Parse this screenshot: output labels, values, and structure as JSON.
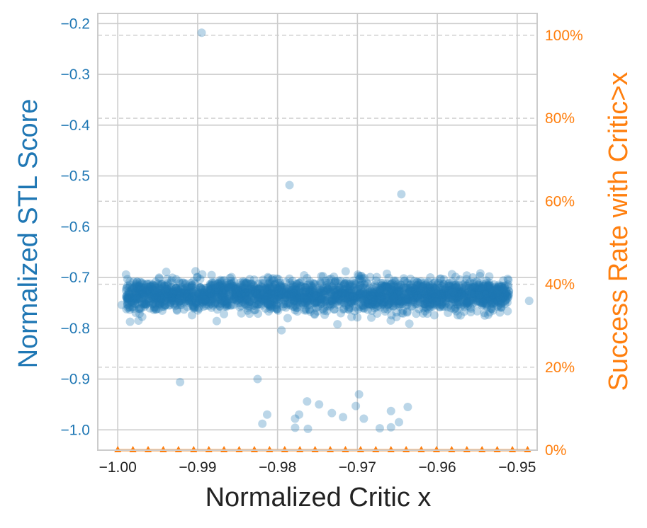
{
  "chart_data": {
    "type": "scatter",
    "xlabel": "Normalized Critic x",
    "ylabel": "Normalized STL Score",
    "y2label": "Success Rate with Critic>x",
    "xlim": [
      -1.0025,
      -0.9475
    ],
    "ylim": [
      -1.04,
      -0.18
    ],
    "y2lim": [
      0,
      1.0526
    ],
    "x_ticks": [
      -1.0,
      -0.99,
      -0.98,
      -0.97,
      -0.96,
      -0.95
    ],
    "x_tick_labels": [
      "−1.00",
      "−0.99",
      "−0.98",
      "−0.97",
      "−0.96",
      "−0.95"
    ],
    "y_ticks": [
      -0.2,
      -0.3,
      -0.4,
      -0.5,
      -0.6,
      -0.7,
      -0.8,
      -0.9,
      -1.0
    ],
    "y_tick_labels": [
      "−0.2",
      "−0.3",
      "−0.4",
      "−0.5",
      "−0.6",
      "−0.7",
      "−0.8",
      "−0.9",
      "−1.0"
    ],
    "y2_ticks": [
      0,
      0.2,
      0.4,
      0.6,
      0.8,
      1.0
    ],
    "y2_tick_labels": [
      "0%",
      "20%",
      "40%",
      "60%",
      "80%",
      "100%"
    ],
    "grid": true,
    "cluster": {
      "x_range": [
        -0.999,
        -0.951
      ],
      "y_center": -0.735,
      "y_spread": 0.015,
      "count": 2500,
      "note_visible": ""
    },
    "scatter_points": [
      {
        "x": -0.9895,
        "y": -0.218
      },
      {
        "x": -0.9785,
        "y": -0.518
      },
      {
        "x": -0.9645,
        "y": -0.536
      },
      {
        "x": -0.9795,
        "y": -0.804
      },
      {
        "x": -0.9725,
        "y": -0.792
      },
      {
        "x": -0.9635,
        "y": -0.791
      },
      {
        "x": -0.9995,
        "y": -0.754
      },
      {
        "x": -0.9985,
        "y": -0.708
      },
      {
        "x": -0.9515,
        "y": -0.746
      },
      {
        "x": -0.9485,
        "y": -0.746
      },
      {
        "x": -0.9535,
        "y": -0.698
      },
      {
        "x": -0.9555,
        "y": -0.713
      },
      {
        "x": -0.9922,
        "y": -0.906
      },
      {
        "x": -0.9825,
        "y": -0.9
      },
      {
        "x": -0.9813,
        "y": -0.97
      },
      {
        "x": -0.9819,
        "y": -0.988
      },
      {
        "x": -0.9773,
        "y": -0.97
      },
      {
        "x": -0.9778,
        "y": -0.978
      },
      {
        "x": -0.9778,
        "y": -0.996
      },
      {
        "x": -0.9763,
        "y": -0.944
      },
      {
        "x": -0.9762,
        "y": -0.998
      },
      {
        "x": -0.9748,
        "y": -0.95
      },
      {
        "x": -0.9732,
        "y": -0.967
      },
      {
        "x": -0.9718,
        "y": -0.975
      },
      {
        "x": -0.9698,
        "y": -0.93
      },
      {
        "x": -0.9702,
        "y": -0.953
      },
      {
        "x": -0.9692,
        "y": -0.978
      },
      {
        "x": -0.9672,
        "y": -0.997
      },
      {
        "x": -0.9658,
        "y": -0.963
      },
      {
        "x": -0.9658,
        "y": -0.995
      },
      {
        "x": -0.9637,
        "y": -0.955
      },
      {
        "x": -0.9648,
        "y": -0.985
      }
    ],
    "series": [
      {
        "name": "",
        "axis": "right",
        "type": "line",
        "color": "#ff7f0e",
        "marker": "triangle",
        "x": [
          -1.0,
          -0.9981,
          -0.9962,
          -0.9943,
          -0.9924,
          -0.9905,
          -0.9886,
          -0.9867,
          -0.9848,
          -0.9829,
          -0.981,
          -0.9791,
          -0.9772,
          -0.9753,
          -0.9734,
          -0.9715,
          -0.9696,
          -0.9677,
          -0.9658,
          -0.9639,
          -0.962,
          -0.9601,
          -0.9582,
          -0.9563,
          -0.9544,
          -0.9525,
          -0.9506,
          -0.9487
        ],
        "y": [
          0,
          0,
          0,
          0,
          0,
          0,
          0,
          0,
          0,
          0,
          0,
          0,
          0,
          0,
          0,
          0,
          0,
          0,
          0,
          0,
          0,
          0,
          0,
          0,
          0,
          0,
          0,
          0
        ]
      }
    ],
    "right_axis_gridlines": [
      0.2,
      0.4,
      0.6,
      0.8,
      1.0
    ]
  },
  "colors": {
    "scatter": "#1f77b4",
    "left_axis": "#1f77b4",
    "right_axis": "#ff7f0e",
    "x_axis_text": "#222222",
    "grid": "#cccccc",
    "right_grid": "#cccccc",
    "spine": "#cccccc"
  }
}
